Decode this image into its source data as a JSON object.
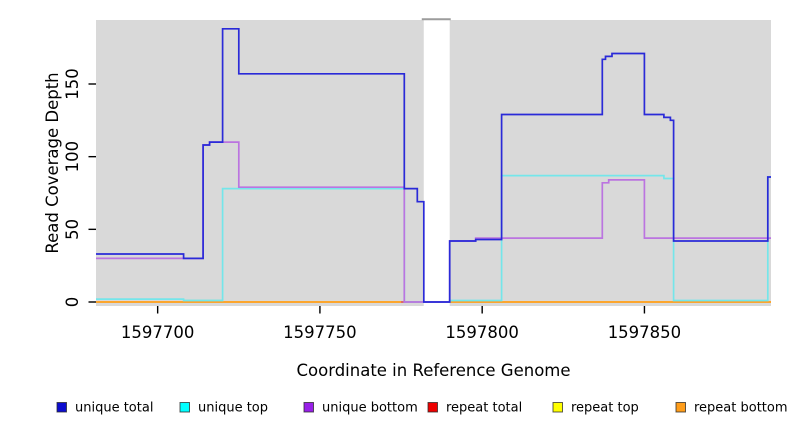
{
  "chart_data": {
    "type": "line",
    "subtype": "step-coverage",
    "xlabel": "Coordinate in Reference Genome",
    "ylabel": "Read Coverage Depth",
    "x_range": [
      1597681,
      1597889
    ],
    "y_range": [
      0,
      194
    ],
    "x_ticks": [
      1597700,
      1597750,
      1597800,
      1597850
    ],
    "y_ticks": [
      0,
      50,
      100,
      150
    ],
    "panel_color": "#d9d9d9",
    "gap_region": {
      "x1": 1597782,
      "x2": 1597790,
      "top_border_color": "#9c9c9c"
    },
    "grid": "off",
    "legend_position": "bottom",
    "series": [
      {
        "name": "repeat top",
        "color": "#f2ea3c",
        "legend_color": "#ffff00",
        "points": [
          [
            1597681,
            0
          ],
          [
            1597889,
            0
          ]
        ]
      },
      {
        "name": "repeat bottom",
        "color": "#ff9d26",
        "legend_color": "#ff9d1a",
        "points": [
          [
            1597681,
            0
          ],
          [
            1597889,
            0
          ]
        ]
      },
      {
        "name": "repeat total",
        "color": "#d95f73",
        "legend_color": "#ee0000",
        "points": [
          [
            1597775,
            0
          ],
          [
            1597782,
            0
          ]
        ]
      },
      {
        "name": "unique top",
        "color": "#74e6ea",
        "legend_color": "#00ffff",
        "points": [
          [
            1597681,
            2
          ],
          [
            1597708,
            2
          ],
          [
            1597708,
            1
          ],
          [
            1597720,
            1
          ],
          [
            1597720,
            78
          ],
          [
            1597776,
            78
          ],
          [
            1597776,
            0
          ],
          [
            1597790,
            0
          ],
          [
            1597790,
            1
          ],
          [
            1597806,
            1
          ],
          [
            1597806,
            87
          ],
          [
            1597856,
            87
          ],
          [
            1597856,
            85
          ],
          [
            1597859,
            85
          ],
          [
            1597859,
            1
          ],
          [
            1597888,
            1
          ],
          [
            1597888,
            86
          ],
          [
            1597889,
            86
          ]
        ]
      },
      {
        "name": "unique bottom",
        "color": "#bb74e0",
        "legend_color": "#9820e8",
        "points": [
          [
            1597681,
            30
          ],
          [
            1597714,
            30
          ],
          [
            1597714,
            108
          ],
          [
            1597716,
            108
          ],
          [
            1597716,
            110
          ],
          [
            1597725,
            110
          ],
          [
            1597725,
            79
          ],
          [
            1597776,
            79
          ],
          [
            1597776,
            0
          ],
          [
            1597790,
            0
          ],
          [
            1597790,
            42
          ],
          [
            1597798,
            42
          ],
          [
            1597798,
            44
          ],
          [
            1597837,
            44
          ],
          [
            1597837,
            82
          ],
          [
            1597839,
            82
          ],
          [
            1597839,
            84
          ],
          [
            1597850,
            84
          ],
          [
            1597850,
            44
          ],
          [
            1597889,
            44
          ]
        ]
      },
      {
        "name": "unique total",
        "color": "#2a2ad8",
        "legend_color": "#0d0dcf",
        "points": [
          [
            1597681,
            33
          ],
          [
            1597708,
            33
          ],
          [
            1597708,
            30
          ],
          [
            1597714,
            30
          ],
          [
            1597714,
            108
          ],
          [
            1597716,
            108
          ],
          [
            1597716,
            110
          ],
          [
            1597720,
            110
          ],
          [
            1597720,
            188
          ],
          [
            1597725,
            188
          ],
          [
            1597725,
            157
          ],
          [
            1597776,
            157
          ],
          [
            1597776,
            78
          ],
          [
            1597780,
            78
          ],
          [
            1597780,
            69
          ],
          [
            1597782,
            69
          ],
          [
            1597782,
            0
          ],
          [
            1597790,
            0
          ],
          [
            1597790,
            42
          ],
          [
            1597798,
            42
          ],
          [
            1597798,
            43
          ],
          [
            1597806,
            43
          ],
          [
            1597806,
            129
          ],
          [
            1597837,
            129
          ],
          [
            1597837,
            167
          ],
          [
            1597838,
            167
          ],
          [
            1597838,
            169
          ],
          [
            1597840,
            169
          ],
          [
            1597840,
            171
          ],
          [
            1597850,
            171
          ],
          [
            1597850,
            129
          ],
          [
            1597856,
            129
          ],
          [
            1597856,
            127
          ],
          [
            1597858,
            127
          ],
          [
            1597858,
            125
          ],
          [
            1597859,
            125
          ],
          [
            1597859,
            42
          ],
          [
            1597888,
            42
          ],
          [
            1597888,
            86
          ],
          [
            1597889,
            86
          ]
        ]
      }
    ],
    "overlap_segments": [
      {
        "x1": 1597708,
        "x2": 1597720,
        "y": 1,
        "color": "#85d49c"
      },
      {
        "x1": 1597790,
        "x2": 1597806,
        "y": 0.5,
        "color": "#85d49c"
      },
      {
        "x1": 1597859,
        "x2": 1597888,
        "y": 0.5,
        "color": "#85d49c"
      }
    ],
    "legend": [
      {
        "label": "unique total",
        "color": "#0d0dcf"
      },
      {
        "label": "unique top",
        "color": "#00ffff"
      },
      {
        "label": "unique bottom",
        "color": "#9820e8"
      },
      {
        "label": "repeat total",
        "color": "#ee0000"
      },
      {
        "label": "repeat top",
        "color": "#ffff00"
      },
      {
        "label": "repeat bottom",
        "color": "#ff9d1a"
      }
    ]
  }
}
